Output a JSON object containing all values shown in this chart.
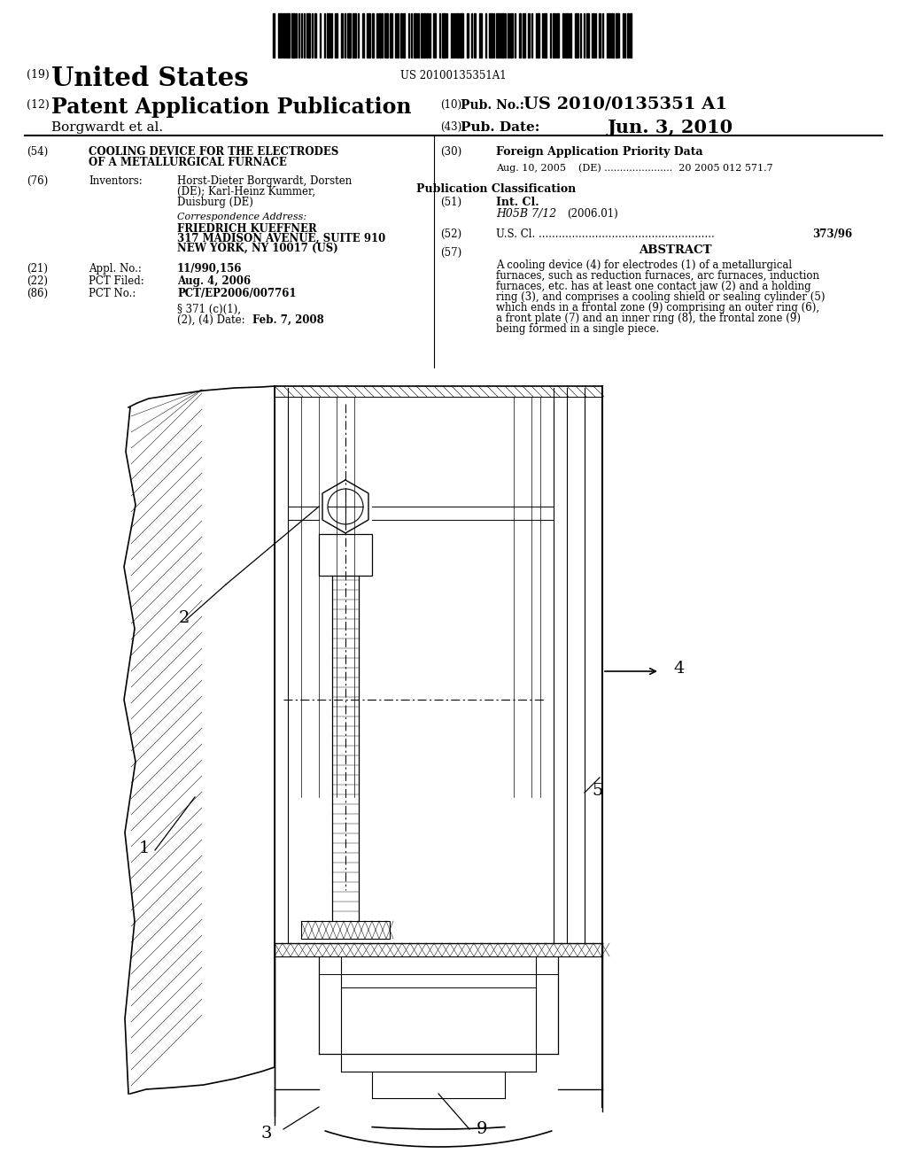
{
  "bg_color": "#ffffff",
  "title_number": "US 20100135351A1",
  "country": "United States",
  "label_19": "(19)",
  "label_12": "(12)",
  "pub_type": "Patent Application Publication",
  "authors": "Borgwardt et al.",
  "label_10": "(10)",
  "pub_no_label": "Pub. No.:",
  "pub_no": "US 2010/0135351 A1",
  "label_43": "(43)",
  "pub_date_label": "Pub. Date:",
  "pub_date": "Jun. 3, 2010",
  "label_54": "(54)",
  "title_line1": "COOLING DEVICE FOR THE ELECTRODES",
  "title_line2": "OF A METALLURGICAL FURNACE",
  "label_76": "(76)",
  "inventors_label": "Inventors:",
  "inv_line1": "Horst-Dieter Borgwardt, Dorsten",
  "inv_line2": "(DE); Karl-Heinz Kummer,",
  "inv_line3": "Duisburg (DE)",
  "corr_label": "Correspondence Address:",
  "corr_name": "FRIEDRICH KUEFFNER",
  "corr_addr1": "317 MADISON AVENUE, SUITE 910",
  "corr_addr2": "NEW YORK, NY 10017 (US)",
  "label_21": "(21)",
  "appl_label": "Appl. No.:",
  "appl_no": "11/990,156",
  "label_22": "(22)",
  "pct_filed_label": "PCT Filed:",
  "pct_filed": "Aug. 4, 2006",
  "label_86": "(86)",
  "pct_no_label": "PCT No.:",
  "pct_no": "PCT/EP2006/007761",
  "section_371a": "§ 371 (c)(1),",
  "section_371b": "(2), (4) Date:",
  "section_date": "Feb. 7, 2008",
  "label_30": "(30)",
  "foreign_label": "Foreign Application Priority Data",
  "foreign_data": "Aug. 10, 2005    (DE) ......................  20 2005 012 571.7",
  "pub_class_label": "Publication Classification",
  "label_51": "(51)",
  "int_cl_label": "Int. Cl.",
  "int_cl_val": "H05B 7/12",
  "int_cl_year": "(2006.01)",
  "label_52": "(52)",
  "us_cl_label": "U.S. Cl. .....................................................",
  "us_cl_no": "373/96",
  "label_57": "(57)",
  "abstract_title": "ABSTRACT",
  "abstract_text": "A cooling device (4) for electrodes (1) of a metallurgical\nfurnaces, such as reduction furnaces, arc furnaces, induction\nfurnaces, etc. has at least one contact jaw (2) and a holding\nring (3), and comprises a cooling shield or sealing cylinder (5)\nwhich ends in a frontal zone (9) comprising an outer ring (6),\na front plate (7) and an inner ring (8), the frontal zone (9)\nbeing formed in a single piece.",
  "dlabel_1": "1",
  "dlabel_2": "2",
  "dlabel_3": "3",
  "dlabel_4": "4",
  "dlabel_5": "5",
  "dlabel_9": "9"
}
